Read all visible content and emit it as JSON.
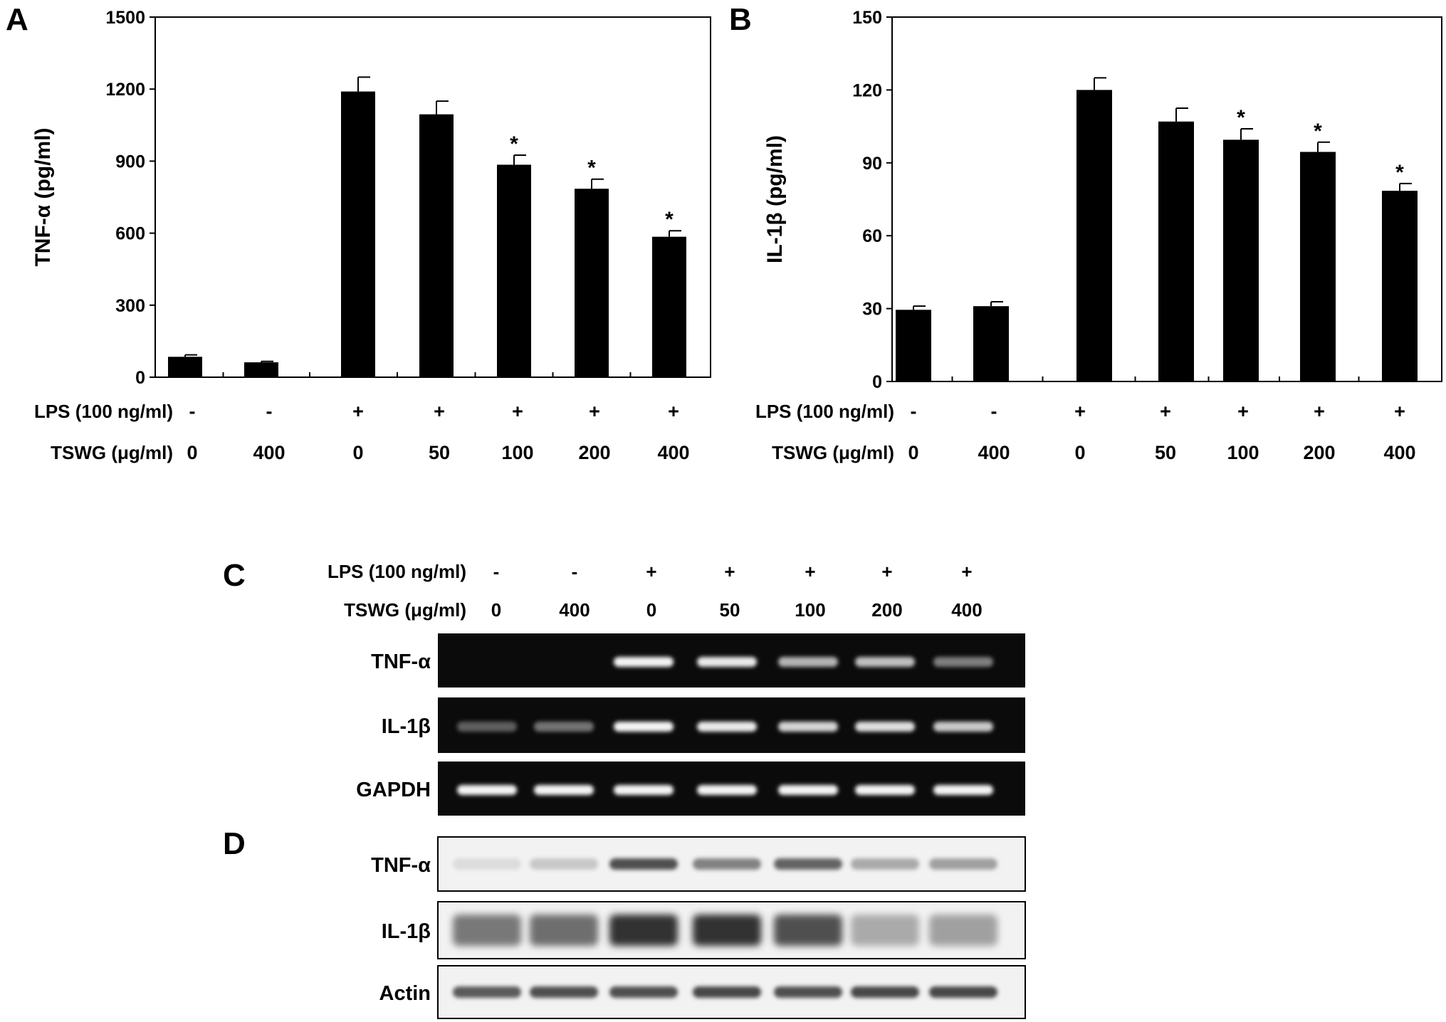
{
  "panels": {
    "A": {
      "letter": "A"
    },
    "B": {
      "letter": "B"
    },
    "C": {
      "letter": "C"
    },
    "D": {
      "letter": "D"
    }
  },
  "conditions": {
    "lps_label": "LPS (100 ng/ml)",
    "tswg_label": "TSWG (μg/ml)",
    "lps": [
      "-",
      "-",
      "+",
      "+",
      "+",
      "+",
      "+"
    ],
    "tswg": [
      "0",
      "400",
      "0",
      "50",
      "100",
      "200",
      "400"
    ]
  },
  "chart_data": [
    {
      "panel": "A",
      "type": "bar",
      "ylabel": "TNF-α (pg/ml)",
      "ylim": [
        0,
        1500
      ],
      "yticks": [
        0,
        300,
        600,
        900,
        1200,
        1500
      ],
      "categories": [
        "0",
        "400",
        "0",
        "50",
        "100",
        "200",
        "400"
      ],
      "values": [
        85,
        62,
        1190,
        1095,
        885,
        785,
        585
      ],
      "errors": [
        8,
        4,
        60,
        55,
        40,
        40,
        25
      ],
      "significance": [
        "",
        "",
        "",
        "",
        "*",
        "*",
        "*"
      ],
      "grid": false,
      "bar_color": "#000000"
    },
    {
      "panel": "B",
      "type": "bar",
      "ylabel": "IL-1β (pg/ml)",
      "ylim": [
        0,
        150
      ],
      "yticks": [
        0,
        30,
        60,
        90,
        120,
        150
      ],
      "categories": [
        "0",
        "400",
        "0",
        "50",
        "100",
        "200",
        "400"
      ],
      "values": [
        29.5,
        31,
        120,
        107,
        99.5,
        94.5,
        78.5
      ],
      "errors": [
        1.5,
        1.8,
        5,
        5.5,
        4.5,
        4,
        3
      ],
      "significance": [
        "",
        "",
        "",
        "",
        "*",
        "*",
        "*"
      ],
      "grid": false,
      "bar_color": "#000000"
    }
  ],
  "gels": {
    "C": {
      "style": "fluorescent",
      "rows": [
        {
          "label": "TNF-α",
          "intensity": [
            0,
            0,
            0.95,
            0.9,
            0.65,
            0.7,
            0.4
          ]
        },
        {
          "label": "IL-1β",
          "intensity": [
            0.25,
            0.35,
            0.95,
            0.9,
            0.8,
            0.85,
            0.75
          ]
        },
        {
          "label": "GAPDH",
          "intensity": [
            0.95,
            0.95,
            0.95,
            0.95,
            0.95,
            0.95,
            0.95
          ]
        }
      ]
    },
    "D": {
      "style": "western",
      "rows": [
        {
          "label": "TNF-α",
          "intensity": [
            0.05,
            0.15,
            0.75,
            0.5,
            0.65,
            0.3,
            0.35
          ]
        },
        {
          "label": "IL-1β",
          "intensity": [
            0.55,
            0.6,
            0.9,
            0.9,
            0.75,
            0.3,
            0.35
          ]
        },
        {
          "label": "Actin",
          "intensity": [
            0.7,
            0.75,
            0.75,
            0.8,
            0.75,
            0.8,
            0.8
          ]
        }
      ]
    }
  }
}
